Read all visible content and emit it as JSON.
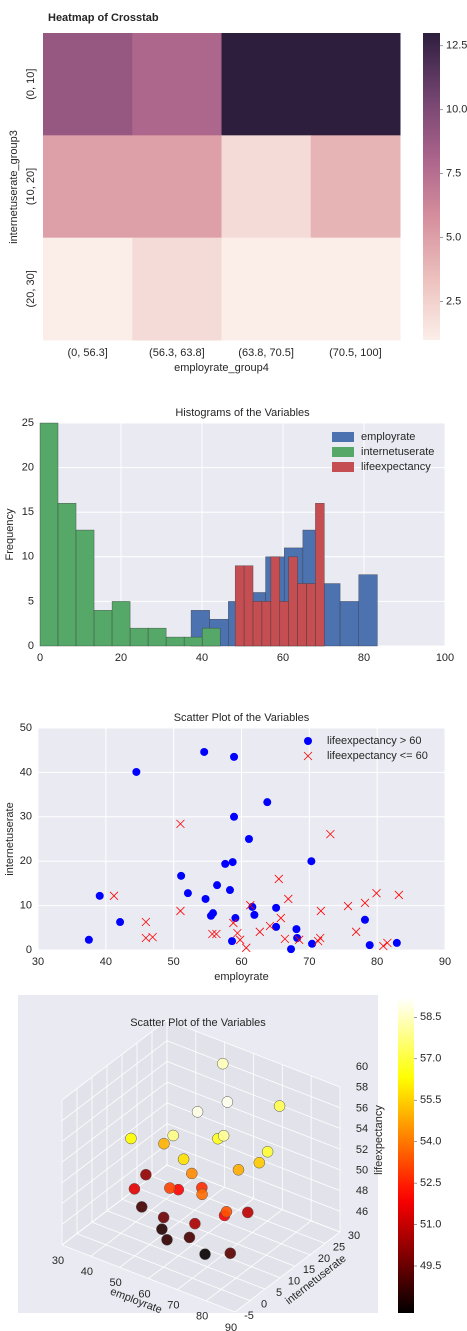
{
  "chart_data": [
    {
      "type": "heatmap",
      "title": "Heatmap of Crosstab",
      "xlabel": "employrate_group4",
      "ylabel": "internetuserate_group3",
      "x_categories": [
        "(0, 56.3]",
        "(56.3, 63.8]",
        "(63.8, 70.5]",
        "(70.5, 100]"
      ],
      "y_categories": [
        "(0, 10]",
        "(10, 20]",
        "(20, 30]"
      ],
      "values": [
        [
          9,
          8,
          13,
          13
        ],
        [
          5,
          5,
          2,
          4
        ],
        [
          1,
          2,
          1,
          1
        ]
      ],
      "cmap": [
        "#fbeee9",
        "#ecc0bd",
        "#d58f9d",
        "#a9628a",
        "#6f426e",
        "#2d1e3e"
      ],
      "clim": [
        1,
        13
      ],
      "colorbar_ticks": [
        2.5,
        {
          "value": 5,
          "label": "5.0"
        },
        7.5,
        {
          "value": 10,
          "label": "10.0"
        },
        12.5
      ]
    },
    {
      "type": "histogram",
      "title": "Histograms of the Variables",
      "ylabel": "Frequency",
      "xlim": [
        0,
        100
      ],
      "xticks": [
        0,
        20,
        40,
        60,
        80,
        100
      ],
      "ylim": [
        0,
        25
      ],
      "yticks": [
        0,
        5,
        10,
        15,
        20,
        25
      ],
      "grid": true,
      "legend": "upper right",
      "series": [
        {
          "name": "employrate",
          "color": "#4c72b0",
          "bins": [
            37.3,
            41.9,
            46.5,
            51.1,
            55.7,
            60.3,
            64.9,
            69.5,
            74.1,
            78.7,
            83.3
          ],
          "values": [
            4,
            3,
            5,
            6,
            10,
            11,
            13,
            7,
            5,
            8
          ]
        },
        {
          "name": "internetuserate",
          "color": "#55a868",
          "bins": [
            0,
            4.45,
            8.9,
            13.35,
            17.8,
            22.25,
            26.7,
            31.15,
            35.6,
            40.05,
            44.5
          ],
          "values": [
            25,
            16,
            13,
            4,
            5,
            2,
            2,
            1,
            1,
            2
          ]
        },
        {
          "name": "lifeexpectancy",
          "color": "#c44e52",
          "bins": [
            48.2,
            50.4,
            52.6,
            54.8,
            57,
            59.2,
            61.4,
            63.6,
            65.8,
            68,
            70.2
          ],
          "values": [
            9,
            9,
            5,
            5,
            10,
            5,
            10,
            7,
            7,
            16
          ]
        }
      ]
    },
    {
      "type": "scatter",
      "title": "Scatter Plot of the Variables",
      "xlabel": "employrate",
      "ylabel": "internetuserate",
      "xlim": [
        30,
        90
      ],
      "xticks": [
        30,
        40,
        50,
        60,
        70,
        80,
        90
      ],
      "ylim": [
        0,
        50
      ],
      "yticks": [
        0,
        10,
        20,
        30,
        40,
        50
      ],
      "grid": true,
      "legend": "upper right",
      "series": [
        {
          "name": "lifeexpectancy > 60",
          "color": "#0000ff",
          "marker": "o",
          "x": [
            37.5,
            39.1,
            42.1,
            44.5,
            51.1,
            52.1,
            54.5,
            54.7,
            55.5,
            55.8,
            56.4,
            57.6,
            58.3,
            58.7,
            58.9,
            58.9,
            58.6,
            59.1,
            61.1,
            61.6,
            61.9,
            63.8,
            65.1,
            65.1,
            67.3,
            68.1,
            68.2,
            70.3,
            70.4,
            78.2,
            78.9,
            82.9
          ],
          "values": [
            2.3,
            12.2,
            6.3,
            40.1,
            16.7,
            12.8,
            44.6,
            11.5,
            7.7,
            8.3,
            14.6,
            19.4,
            13.5,
            19.8,
            43.5,
            30.0,
            2.0,
            7.2,
            25.0,
            9.7,
            7.9,
            33.3,
            5.2,
            9.5,
            0.2,
            4.7,
            2.7,
            20.0,
            1.4,
            6.8,
            1.1,
            1.6
          ]
        },
        {
          "name": "lifeexpectancy <= 60",
          "color": "#ff0000",
          "marker": "x",
          "x": [
            41.2,
            45.9,
            45.9,
            46.9,
            51.0,
            51.0,
            55.7,
            56.3,
            58.8,
            59.4,
            59.8,
            60.7,
            61.3,
            62.7,
            64.2,
            65.5,
            65.8,
            66.4,
            66.9,
            68.5,
            71.3,
            71.6,
            71.7,
            73.1,
            75.7,
            76.9,
            78.2,
            79.9,
            80.9,
            81.5,
            83.2
          ],
          "values": [
            12.2,
            6.3,
            2.7,
            2.9,
            28.4,
            8.8,
            3.6,
            3.6,
            6.1,
            3.8,
            2.3,
            0.5,
            10.1,
            4.1,
            5.4,
            16.0,
            7.2,
            2.5,
            11.5,
            2.3,
            2.0,
            2.7,
            8.8,
            26.1,
            9.9,
            4.1,
            10.6,
            12.8,
            0.9,
            1.6,
            12.4
          ]
        }
      ]
    },
    {
      "type": "scatter3d",
      "title": "Scatter Plot of the Variables",
      "xlabel": "employrate",
      "ylabel": "internetuserate",
      "zlabel": "lifeexpectancy",
      "xlim": [
        30,
        90
      ],
      "xticks": [
        30,
        40,
        50,
        60,
        70,
        80,
        90
      ],
      "ylim": [
        -5,
        30
      ],
      "yticks": [
        -5,
        0,
        5,
        10,
        15,
        20,
        25,
        30
      ],
      "zlim": [
        46,
        60
      ],
      "zticks": [
        46,
        48,
        50,
        52,
        54,
        56,
        58,
        60
      ],
      "x": [
        41.2,
        45.9,
        45.9,
        46.9,
        51.0,
        51.0,
        55.7,
        56.3,
        58.8,
        59.4,
        59.8,
        60.7,
        61.3,
        62.7,
        64.2,
        65.5,
        65.8,
        66.4,
        66.9,
        68.5,
        71.3,
        71.6,
        71.7,
        73.1,
        75.7,
        76.9,
        78.2,
        79.9,
        80.9,
        81.5,
        83.2
      ],
      "y": [
        12.2,
        6.3,
        2.7,
        2.9,
        28.4,
        8.8,
        3.6,
        3.6,
        6.1,
        3.8,
        2.3,
        0.5,
        10.1,
        4.1,
        5.4,
        16.0,
        7.2,
        2.5,
        11.5,
        2.3,
        2.0,
        2.7,
        8.8,
        26.1,
        9.9,
        4.1,
        10.6,
        12.8,
        0.9,
        1.6,
        12.4
      ],
      "z": [
        50.2,
        48.9,
        56.3,
        51.5,
        58.4,
        55.0,
        48.4,
        49.6,
        52.0,
        57.8,
        53.1,
        48.6,
        58.9,
        55.8,
        54.3,
        59.0,
        52.7,
        49.0,
        56.6,
        50.6,
        53.8,
        47.9,
        58.0,
        57.2,
        54.9,
        51.9,
        50.9,
        55.4,
        53.4,
        49.3,
        56.9
      ],
      "cmap": "hot",
      "clim": [
        47.8,
        59.2
      ],
      "colorbar_ticks": [
        49.5,
        {
          "value": 51,
          "label": "51.0"
        },
        52.5,
        {
          "value": 54,
          "label": "54.0"
        },
        55.5,
        {
          "value": 57,
          "label": "57.0"
        },
        58.5
      ]
    }
  ]
}
